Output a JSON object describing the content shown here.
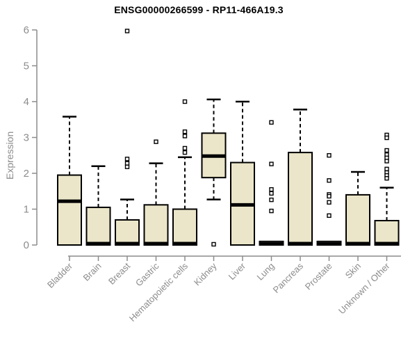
{
  "title": "ENSG00000266599 - RP11-466A19.3",
  "colors": {
    "box_fill": "#EBE6C9",
    "box_stroke": "#000000",
    "median": "#000000",
    "whisker": "#000000",
    "outlier_fill": "#ffffff",
    "outlier_stroke": "#000000",
    "axis": "#8c8c8c",
    "tick_label": "#8c8c8c",
    "title_color": "#000000"
  },
  "chart_data": {
    "type": "boxplot",
    "title": "ENSG00000266599 - RP11-466A19.3",
    "xlabel": "",
    "ylabel": "Expression",
    "ylim": [
      0,
      6
    ],
    "yticks": [
      0,
      1,
      2,
      3,
      4,
      5,
      6
    ],
    "grid": false,
    "legend": "none",
    "categories": [
      "Bladder",
      "Brain",
      "Breast",
      "Gastric",
      "Hematopoietic cells",
      "Kidney",
      "Liver",
      "Lung",
      "Pancreas",
      "Prostate",
      "Skin",
      "Unknown / Other"
    ],
    "boxes": [
      {
        "label": "Bladder",
        "whisker_low": 0,
        "q1": 0,
        "median": 1.22,
        "q3": 1.95,
        "whisker_high": 3.58,
        "outliers": []
      },
      {
        "label": "Brain",
        "whisker_low": 0,
        "q1": 0,
        "median": 0.04,
        "q3": 1.05,
        "whisker_high": 2.2,
        "outliers": []
      },
      {
        "label": "Breast",
        "whisker_low": 0,
        "q1": 0,
        "median": 0.04,
        "q3": 0.7,
        "whisker_high": 1.27,
        "outliers": [
          5.97,
          2.4,
          2.28,
          2.18
        ]
      },
      {
        "label": "Gastric",
        "whisker_low": 0,
        "q1": 0,
        "median": 0.04,
        "q3": 1.12,
        "whisker_high": 2.28,
        "outliers": [
          2.88
        ]
      },
      {
        "label": "Hematopoietic cells",
        "whisker_low": 0,
        "q1": 0,
        "median": 0.04,
        "q3": 1.0,
        "whisker_high": 2.45,
        "outliers": [
          4.0,
          3.16,
          3.04,
          2.7,
          2.58
        ]
      },
      {
        "label": "Kidney",
        "whisker_low": 1.27,
        "q1": 1.88,
        "median": 2.48,
        "q3": 3.12,
        "whisker_high": 4.06,
        "outliers": [
          0.02
        ]
      },
      {
        "label": "Liver",
        "whisker_low": 0,
        "q1": 0,
        "median": 1.12,
        "q3": 2.3,
        "whisker_high": 4.0,
        "outliers": []
      },
      {
        "label": "Lung",
        "whisker_low": 0,
        "q1": 0,
        "median": 0.03,
        "q3": 0.1,
        "whisker_high": 0.1,
        "outliers": [
          3.42,
          2.26,
          1.55,
          1.44,
          1.26,
          0.95
        ]
      },
      {
        "label": "Pancreas",
        "whisker_low": 0,
        "q1": 0,
        "median": 0.04,
        "q3": 2.58,
        "whisker_high": 3.78,
        "outliers": []
      },
      {
        "label": "Prostate",
        "whisker_low": 0,
        "q1": 0,
        "median": 0.03,
        "q3": 0.1,
        "whisker_high": 0.1,
        "outliers": [
          2.5,
          1.8,
          1.41,
          1.36,
          1.19,
          0.82
        ]
      },
      {
        "label": "Skin",
        "whisker_low": 0,
        "q1": 0,
        "median": 0.04,
        "q3": 1.4,
        "whisker_high": 2.04,
        "outliers": []
      },
      {
        "label": "Unknown / Other",
        "whisker_low": 0,
        "q1": 0,
        "median": 0.04,
        "q3": 0.68,
        "whisker_high": 1.6,
        "outliers": [
          3.07,
          2.99,
          2.64,
          2.52,
          2.43,
          2.34,
          2.12,
          2.02,
          1.94,
          1.86
        ]
      }
    ]
  }
}
